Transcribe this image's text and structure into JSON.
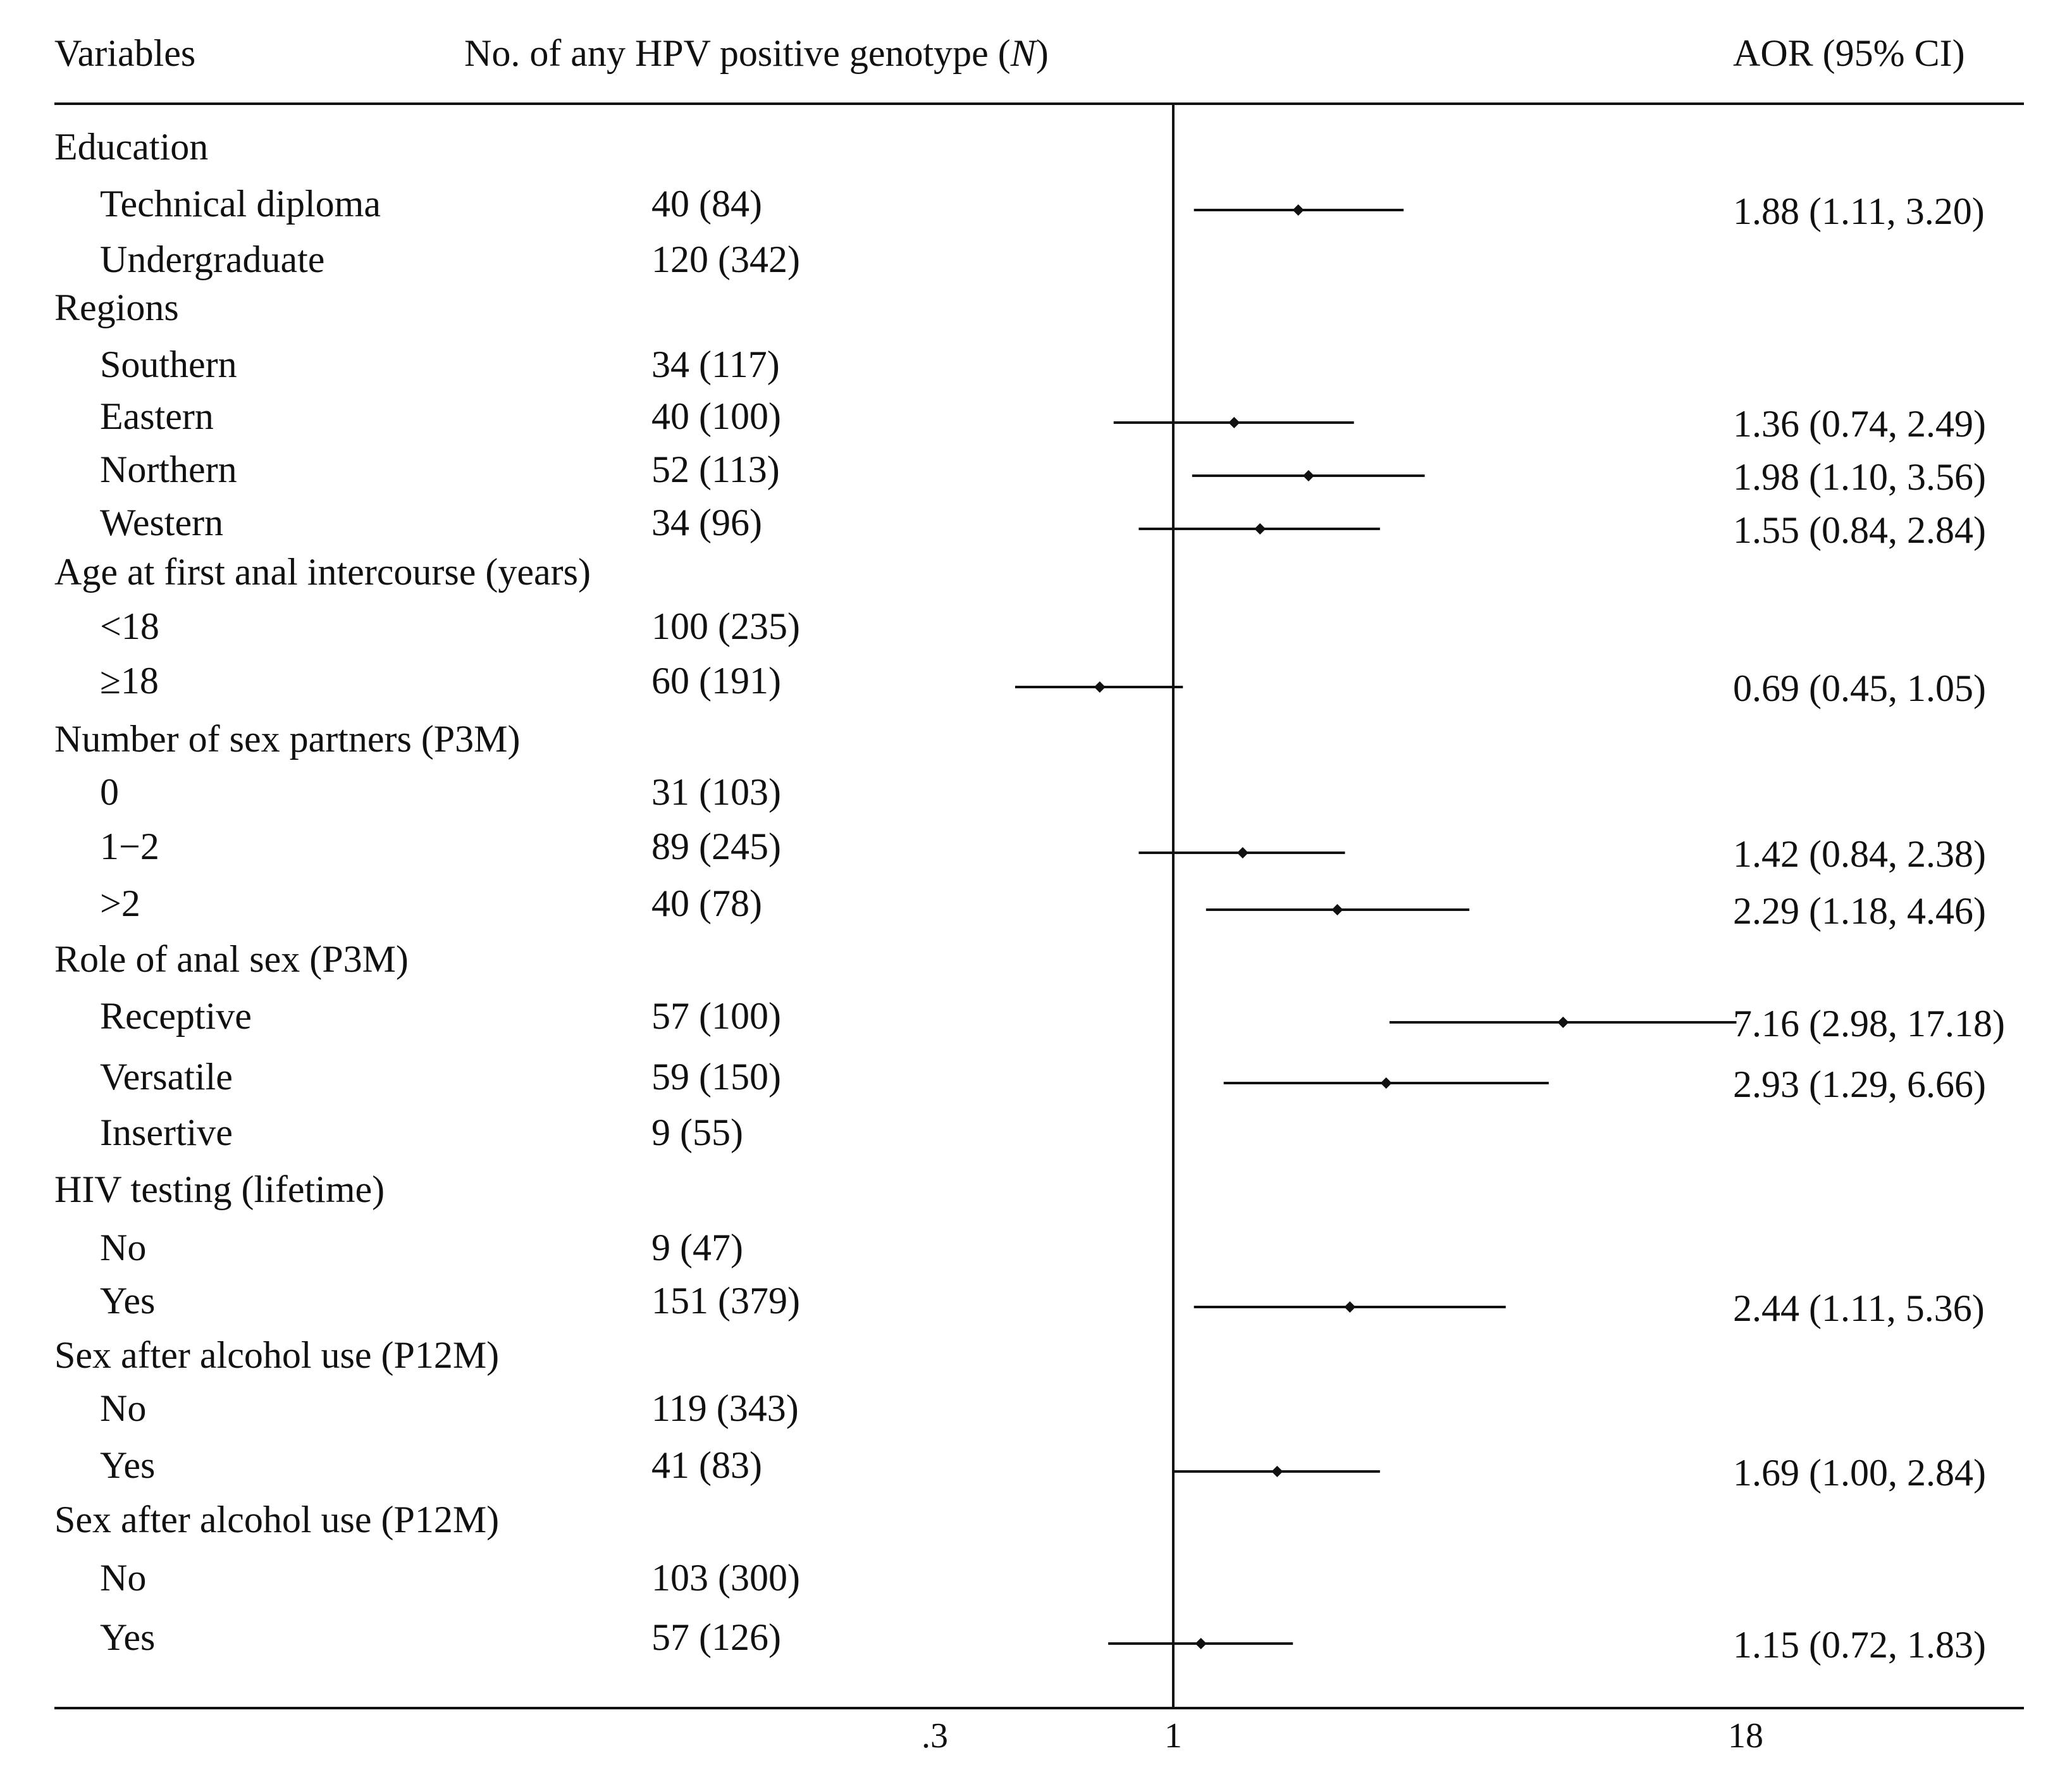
{
  "chart_data": {
    "type": "forest",
    "headers": {
      "variables": "Variables",
      "count": "No. of any HPV positive genotype (",
      "count_italic": "N",
      "count_end": ")",
      "effect": "AOR (95% CI)"
    },
    "x_axis": {
      "scale": "log",
      "reference": 1,
      "xlim": [
        0.2,
        40
      ],
      "ticks": [
        {
          "value": 0.3,
          "label": ".3"
        },
        {
          "value": 1,
          "label": "1"
        },
        {
          "value": 18,
          "label": "18"
        }
      ]
    },
    "rows": [
      {
        "label": "Education",
        "group": true
      },
      {
        "label": "Technical diploma",
        "n": "40 (84)",
        "aor": 1.88,
        "lo": 1.11,
        "hi": 3.2,
        "text": "1.88 (1.11, 3.20)"
      },
      {
        "label": "Undergraduate",
        "n": "120 (342)"
      },
      {
        "label": "Regions",
        "group": true
      },
      {
        "label": "Southern",
        "n": "34 (117)"
      },
      {
        "label": "Eastern",
        "n": "40 (100)",
        "aor": 1.36,
        "lo": 0.74,
        "hi": 2.49,
        "text": "1.36 (0.74, 2.49)"
      },
      {
        "label": "Northern",
        "n": "52 (113)",
        "aor": 1.98,
        "lo": 1.1,
        "hi": 3.56,
        "text": "1.98 (1.10, 3.56)"
      },
      {
        "label": "Western",
        "n": "34 (96)",
        "aor": 1.55,
        "lo": 0.84,
        "hi": 2.84,
        "text": "1.55 (0.84, 2.84)"
      },
      {
        "label": "Age at first anal intercourse (years)",
        "group": true
      },
      {
        "label": "<18",
        "n": "100 (235)"
      },
      {
        "label": "≥18",
        "n": "60 (191)",
        "aor": 0.69,
        "lo": 0.45,
        "hi": 1.05,
        "text": "0.69 (0.45, 1.05)"
      },
      {
        "label": "Number of sex partners (P3M)",
        "group": true
      },
      {
        "label": "0",
        "n": "31 (103)"
      },
      {
        "label": "1−2",
        "n": "89 (245)",
        "aor": 1.42,
        "lo": 0.84,
        "hi": 2.38,
        "text": "1.42 (0.84, 2.38)"
      },
      {
        "label": ">2",
        "n": "40 (78)",
        "aor": 2.29,
        "lo": 1.18,
        "hi": 4.46,
        "text": "2.29 (1.18, 4.46)"
      },
      {
        "label": "Role of anal sex (P3M)",
        "group": true
      },
      {
        "label": "Receptive",
        "n": "57 (100)",
        "aor": 7.16,
        "lo": 2.98,
        "hi": 17.18,
        "text": "7.16 (2.98, 17.18)"
      },
      {
        "label": "Versatile",
        "n": "59 (150)",
        "aor": 2.93,
        "lo": 1.29,
        "hi": 6.66,
        "text": "2.93 (1.29, 6.66)"
      },
      {
        "label": "Insertive",
        "n": "9 (55)"
      },
      {
        "label": "HIV testing (lifetime)",
        "group": true
      },
      {
        "label": "No",
        "n": "9 (47)"
      },
      {
        "label": "Yes",
        "n": "151 (379)",
        "aor": 2.44,
        "lo": 1.11,
        "hi": 5.36,
        "text": "2.44 (1.11, 5.36)"
      },
      {
        "label": "Sex after alcohol use (P12M)",
        "group": true
      },
      {
        "label": "No",
        "n": "119 (343)"
      },
      {
        "label": "Yes",
        "n": "41 (83)",
        "aor": 1.69,
        "lo": 1.0,
        "hi": 2.84,
        "text": "1.69 (1.00, 2.84)"
      },
      {
        "label": "Sex after alcohol use (P12M)",
        "group": true
      },
      {
        "label": "No",
        "n": "103 (300)"
      },
      {
        "label": "Yes",
        "n": "57 (126)",
        "aor": 1.15,
        "lo": 0.72,
        "hi": 1.83,
        "text": "1.15 (0.72, 1.83)"
      }
    ]
  }
}
